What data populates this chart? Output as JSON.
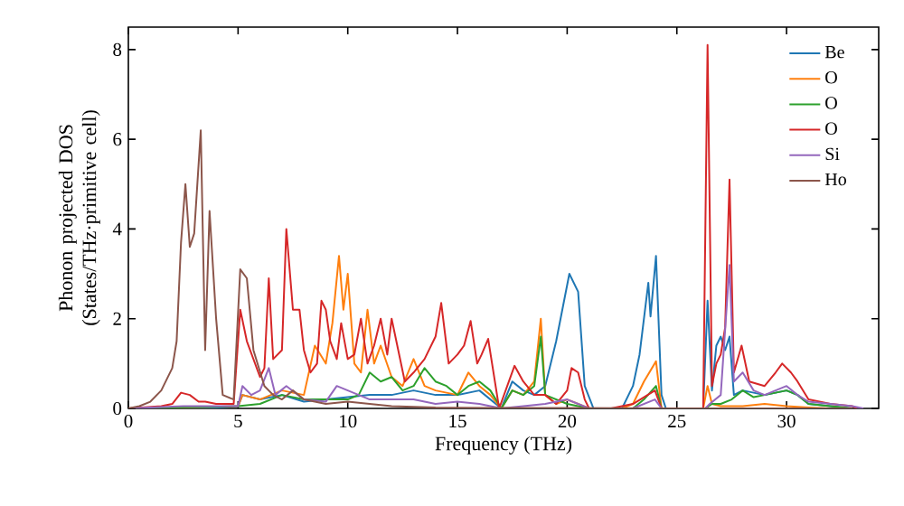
{
  "chart_data": {
    "type": "line",
    "xlabel": "Frequency (THz)",
    "ylabel": "Phonon projected DOS (States/THz·primitive cell)",
    "xlim": [
      0,
      34.2
    ],
    "ylim": [
      0,
      8.5
    ],
    "xticks": [
      0,
      5,
      10,
      15,
      20,
      25,
      30
    ],
    "yticks": [
      0,
      2,
      4,
      6,
      8
    ],
    "legend": "top right",
    "grid": false,
    "marker": "none",
    "line_style": "solid",
    "series": [
      {
        "name": "Be",
        "color": "#1f77b4",
        "x": [
          0,
          4,
          5,
          5.2,
          6,
          7,
          8,
          9,
          10,
          11,
          12,
          13,
          14,
          15,
          16,
          16.5,
          17,
          17.5,
          18,
          18.5,
          19,
          19.5,
          20.1,
          20.5,
          20.8,
          21.2,
          22.5,
          23,
          23.3,
          23.7,
          23.8,
          24.05,
          24.3,
          24.5,
          26.2,
          26.4,
          26.6,
          26.8,
          27,
          27.2,
          27.4,
          27.6,
          28,
          29,
          30,
          30.5,
          31,
          32,
          33
        ],
        "values": [
          0,
          0.02,
          0.05,
          0.3,
          0.2,
          0.3,
          0.15,
          0.2,
          0.25,
          0.3,
          0.3,
          0.4,
          0.3,
          0.3,
          0.4,
          0.2,
          0,
          0.6,
          0.4,
          0.3,
          0.5,
          1.5,
          3.0,
          2.6,
          0.5,
          0,
          0,
          0.5,
          1.2,
          2.8,
          2.05,
          3.4,
          0.3,
          0,
          0,
          2.4,
          0.4,
          1.4,
          1.6,
          1.3,
          1.6,
          0.3,
          0.4,
          0.3,
          0.4,
          0.3,
          0.1,
          0.05,
          0
        ]
      },
      {
        "name": "O",
        "color": "#ff7f0e",
        "x": [
          0,
          5,
          5.2,
          6,
          7,
          8,
          8.5,
          9,
          9.3,
          9.6,
          9.8,
          10,
          10.3,
          10.6,
          10.9,
          11.2,
          11.5,
          12,
          12.5,
          13,
          13.5,
          14,
          15,
          15.5,
          16,
          16.5,
          17,
          17.5,
          18,
          18.5,
          18.8,
          19,
          19.5,
          20,
          20.5,
          21,
          22.5,
          23,
          23.5,
          24.05,
          24.3,
          26.2,
          26.4,
          26.6,
          27,
          28,
          29,
          30,
          31,
          32
        ],
        "values": [
          0,
          0.05,
          0.3,
          0.2,
          0.4,
          0.3,
          1.4,
          1.0,
          1.9,
          3.4,
          2.2,
          3.0,
          1.0,
          0.8,
          2.2,
          1.0,
          1.4,
          0.7,
          0.5,
          1.1,
          0.5,
          0.4,
          0.3,
          0.8,
          0.5,
          0.3,
          0,
          0.4,
          0.3,
          0.6,
          2.0,
          0.3,
          0.1,
          0.2,
          0.1,
          0,
          0,
          0.1,
          0.6,
          1.05,
          0,
          0,
          0.5,
          0.1,
          0.05,
          0.05,
          0.1,
          0.05,
          0.02,
          0
        ]
      },
      {
        "name": "O",
        "color": "#2ca02c",
        "x": [
          0,
          5,
          6,
          7,
          8,
          9,
          10,
          10.5,
          11,
          11.5,
          12,
          12.5,
          13,
          13.5,
          14,
          14.5,
          15,
          15.5,
          16,
          16.5,
          17,
          17.5,
          18,
          18.5,
          18.8,
          19,
          20,
          21,
          23,
          23.5,
          24.05,
          24.3,
          26.3,
          26.6,
          27,
          27.5,
          28,
          28.5,
          29,
          29.5,
          30,
          30.5,
          31,
          32,
          33
        ],
        "values": [
          0,
          0.05,
          0.1,
          0.3,
          0.2,
          0.2,
          0.2,
          0.3,
          0.8,
          0.6,
          0.7,
          0.4,
          0.5,
          0.9,
          0.6,
          0.5,
          0.3,
          0.5,
          0.6,
          0.4,
          0,
          0.4,
          0.3,
          0.5,
          1.6,
          0.3,
          0.1,
          0,
          0,
          0.2,
          0.5,
          0,
          0,
          0.1,
          0.1,
          0.2,
          0.4,
          0.25,
          0.3,
          0.35,
          0.4,
          0.3,
          0.1,
          0.05,
          0
        ]
      },
      {
        "name": "O",
        "color": "#d62728",
        "x": [
          0,
          1.5,
          2,
          2.4,
          2.8,
          3.2,
          3.5,
          4,
          4.8,
          5.1,
          5.4,
          5.7,
          6,
          6.2,
          6.4,
          6.6,
          7,
          7.2,
          7.5,
          7.8,
          8,
          8.3,
          8.6,
          8.8,
          9,
          9.2,
          9.5,
          9.7,
          10,
          10.3,
          10.6,
          10.9,
          11.2,
          11.5,
          11.8,
          12,
          12.3,
          12.6,
          13,
          13.5,
          14,
          14.26,
          14.6,
          15,
          15.3,
          15.6,
          15.9,
          16.1,
          16.4,
          16.9,
          17.6,
          18,
          18.5,
          19,
          19.5,
          20,
          20.2,
          20.5,
          20.8,
          21,
          22,
          23,
          24,
          24.3,
          26.2,
          26.4,
          26.6,
          26.8,
          27,
          27.2,
          27.4,
          27.6,
          27.95,
          28.3,
          29,
          29.5,
          29.8,
          30.2,
          30.5,
          31,
          32,
          33,
          33.2
        ],
        "values": [
          0,
          0.05,
          0.1,
          0.35,
          0.3,
          0.15,
          0.15,
          0.1,
          0.1,
          2.2,
          1.5,
          1.1,
          0.7,
          0.9,
          2.9,
          1.1,
          1.3,
          4.0,
          2.2,
          2.2,
          1.3,
          0.8,
          1.0,
          2.4,
          2.2,
          1.5,
          1.1,
          1.9,
          1.1,
          1.2,
          2.0,
          1.0,
          1.4,
          2.0,
          1.2,
          2.0,
          1.3,
          0.6,
          0.8,
          1.1,
          1.6,
          2.35,
          1.0,
          1.2,
          1.4,
          1.95,
          1.0,
          1.2,
          1.55,
          0,
          0.95,
          0.6,
          0.3,
          0.3,
          0.1,
          0.4,
          0.9,
          0.8,
          0.2,
          0,
          0,
          0.1,
          0.4,
          0,
          0,
          8.1,
          0.5,
          1.0,
          1.2,
          1.8,
          5.1,
          0.8,
          1.4,
          0.6,
          0.5,
          0.8,
          1.0,
          0.8,
          0.6,
          0.2,
          0.1,
          0.05,
          0
        ]
      },
      {
        "name": "Si",
        "color": "#9467bd",
        "x": [
          0,
          2.5,
          3,
          5,
          5.2,
          5.6,
          6,
          6.4,
          6.7,
          7.2,
          8,
          9,
          9.5,
          10,
          10.5,
          11,
          12,
          13,
          14,
          15,
          16,
          17,
          18,
          19,
          20,
          20.5,
          21,
          23,
          24,
          24.3,
          26.3,
          26.5,
          27,
          27.4,
          27.6,
          28,
          28.5,
          29,
          29.5,
          30,
          30.5,
          31,
          32,
          33,
          33.5
        ],
        "values": [
          0,
          0.05,
          0.05,
          0.05,
          0.5,
          0.3,
          0.4,
          0.9,
          0.3,
          0.5,
          0.2,
          0.15,
          0.5,
          0.4,
          0.3,
          0.2,
          0.2,
          0.2,
          0.1,
          0.15,
          0.1,
          0,
          0.05,
          0.1,
          0.2,
          0.1,
          0,
          0,
          0.2,
          0,
          0,
          0.1,
          0.3,
          3.2,
          0.6,
          0.8,
          0.4,
          0.3,
          0.4,
          0.5,
          0.3,
          0.15,
          0.1,
          0.05,
          0
        ]
      },
      {
        "name": "Ho",
        "color": "#8c564b",
        "x": [
          0,
          0.5,
          1,
          1.5,
          2,
          2.2,
          2.4,
          2.6,
          2.8,
          3.0,
          3.3,
          3.5,
          3.7,
          4.0,
          4.3,
          4.8,
          5.1,
          5.4,
          5.7,
          6.2,
          6.6,
          7,
          7.5,
          8,
          9,
          10,
          11,
          12,
          14,
          17,
          20,
          25,
          30,
          33
        ],
        "values": [
          0,
          0.05,
          0.15,
          0.4,
          0.9,
          1.5,
          3.7,
          5.0,
          3.6,
          3.9,
          6.2,
          1.3,
          4.4,
          2.0,
          0.3,
          0.2,
          3.1,
          2.9,
          1.3,
          0.5,
          0.3,
          0.2,
          0.4,
          0.2,
          0.1,
          0.15,
          0.1,
          0.05,
          0.02,
          0.01,
          0.01,
          0,
          0,
          0
        ]
      }
    ]
  }
}
